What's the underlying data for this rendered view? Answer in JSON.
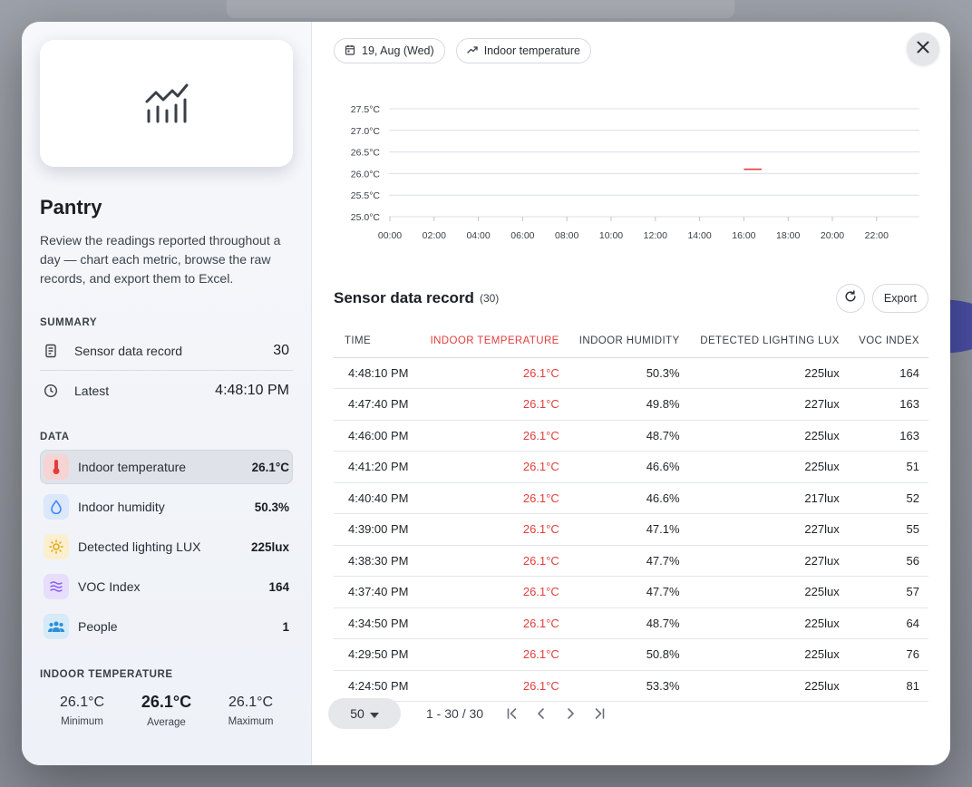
{
  "room": {
    "title": "Pantry",
    "description": "Review the readings reported throughout a day — chart each metric, browse the raw records, and export them to Excel."
  },
  "summary": {
    "label": "SUMMARY",
    "records_label": "Sensor data record",
    "records_value": "30",
    "latest_label": "Latest",
    "latest_value": "4:48:10 PM"
  },
  "data_section": {
    "label": "DATA",
    "metrics": [
      {
        "name": "Indoor temperature",
        "value": "26.1°C",
        "icon": "thermometer-icon",
        "color": "#e23d3d",
        "bg": "#f6d4d4"
      },
      {
        "name": "Indoor humidity",
        "value": "50.3%",
        "icon": "droplet-icon",
        "color": "#3b82f6",
        "bg": "#dbe7fb"
      },
      {
        "name": "Detected lighting LUX",
        "value": "225lux",
        "icon": "sun-icon",
        "color": "#e5a50a",
        "bg": "#fbefd0"
      },
      {
        "name": "VOC Index",
        "value": "164",
        "icon": "waves-icon",
        "color": "#8b5cf6",
        "bg": "#e7defb"
      },
      {
        "name": "People",
        "value": "1",
        "icon": "people-icon",
        "color": "#2a8fd6",
        "bg": "#d6eaf8"
      }
    ]
  },
  "temperature_stats": {
    "label": "INDOOR TEMPERATURE",
    "min_value": "26.1°C",
    "min_label": "Minimum",
    "avg_value": "26.1°C",
    "avg_label": "Average",
    "max_value": "26.1°C",
    "max_label": "Maximum"
  },
  "toolbar": {
    "date_chip": "19, Aug (Wed)",
    "metric_chip": "Indoor temperature"
  },
  "chart_data": {
    "type": "line",
    "title": "",
    "xlabel": "",
    "ylabel": "",
    "x_ticks": [
      "00:00",
      "02:00",
      "04:00",
      "06:00",
      "08:00",
      "10:00",
      "12:00",
      "14:00",
      "16:00",
      "18:00",
      "20:00",
      "22:00"
    ],
    "y_ticks": [
      "25.0°C",
      "25.5°C",
      "26.0°C",
      "26.5°C",
      "27.0°C",
      "27.5°C"
    ],
    "ylim": [
      25.0,
      27.5
    ],
    "xlim_hours": [
      0,
      24
    ],
    "grid": true,
    "series": [
      {
        "color": "#e23d3d",
        "points": [
          [
            16.0,
            26.1
          ],
          [
            16.8,
            26.1
          ]
        ]
      }
    ]
  },
  "records": {
    "title": "Sensor data record",
    "count": "(30)",
    "export_label": "Export",
    "columns": [
      "TIME",
      "INDOOR TEMPERATURE",
      "INDOOR HUMIDITY",
      "DETECTED LIGHTING LUX",
      "VOC INDEX"
    ],
    "rows": [
      [
        "4:48:10 PM",
        "26.1°C",
        "50.3%",
        "225lux",
        "164"
      ],
      [
        "4:47:40 PM",
        "26.1°C",
        "49.8%",
        "227lux",
        "163"
      ],
      [
        "4:46:00 PM",
        "26.1°C",
        "48.7%",
        "225lux",
        "163"
      ],
      [
        "4:41:20 PM",
        "26.1°C",
        "46.6%",
        "225lux",
        "51"
      ],
      [
        "4:40:40 PM",
        "26.1°C",
        "46.6%",
        "217lux",
        "52"
      ],
      [
        "4:39:00 PM",
        "26.1°C",
        "47.1%",
        "227lux",
        "55"
      ],
      [
        "4:38:30 PM",
        "26.1°C",
        "47.7%",
        "227lux",
        "56"
      ],
      [
        "4:37:40 PM",
        "26.1°C",
        "47.7%",
        "225lux",
        "57"
      ],
      [
        "4:34:50 PM",
        "26.1°C",
        "48.7%",
        "225lux",
        "64"
      ],
      [
        "4:29:50 PM",
        "26.1°C",
        "50.8%",
        "225lux",
        "76"
      ],
      [
        "4:24:50 PM",
        "26.1°C",
        "53.3%",
        "225lux",
        "81"
      ]
    ]
  },
  "pagination": {
    "page_size": "50",
    "range": "1 - 30 / 30"
  },
  "colors": {
    "accent_red": "#e23d3d"
  }
}
